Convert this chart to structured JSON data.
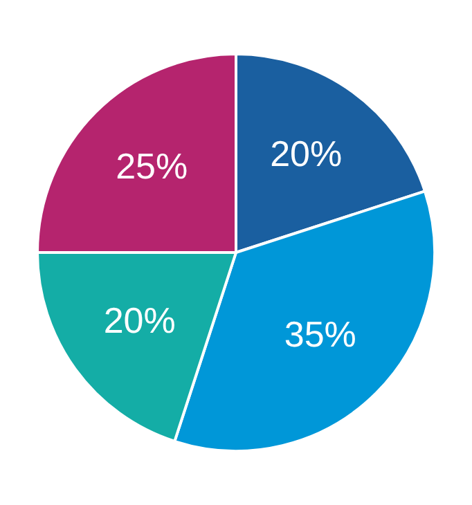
{
  "chart_data": {
    "type": "pie",
    "categories": [
      null,
      null,
      null,
      null
    ],
    "values": [
      20,
      35,
      20,
      25
    ],
    "colors": [
      "#1a5fa0",
      "#0097d8",
      "#14ada6",
      "#b5246e"
    ],
    "value_labels": [
      "20%",
      "35%",
      "20%",
      "25%"
    ],
    "legend": false
  }
}
